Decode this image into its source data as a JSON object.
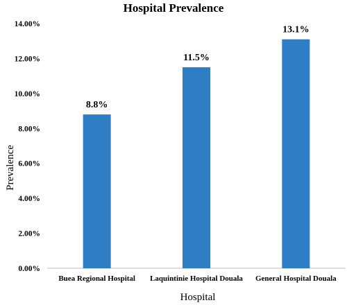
{
  "chart_data": {
    "type": "bar",
    "title": "Hospital Prevalence",
    "xlabel": "Hospital",
    "ylabel": "Prevalence",
    "categories": [
      "Buea Regional Hospital",
      "Laquintinie Hospital Douala",
      "General Hospital Douala"
    ],
    "values": [
      8.8,
      11.5,
      13.1
    ],
    "data_labels": [
      "8.8%",
      "11.5%",
      "13.1%"
    ],
    "ylim": [
      0,
      14
    ],
    "yticks": [
      0,
      2,
      4,
      6,
      8,
      10,
      12,
      14
    ],
    "ytick_labels": [
      "0.00%",
      "2.00%",
      "4.00%",
      "6.00%",
      "8.00%",
      "10.00%",
      "12.00%",
      "14.00%"
    ],
    "grid": false,
    "legend": "none",
    "bar_color": "#2e7ec6"
  }
}
